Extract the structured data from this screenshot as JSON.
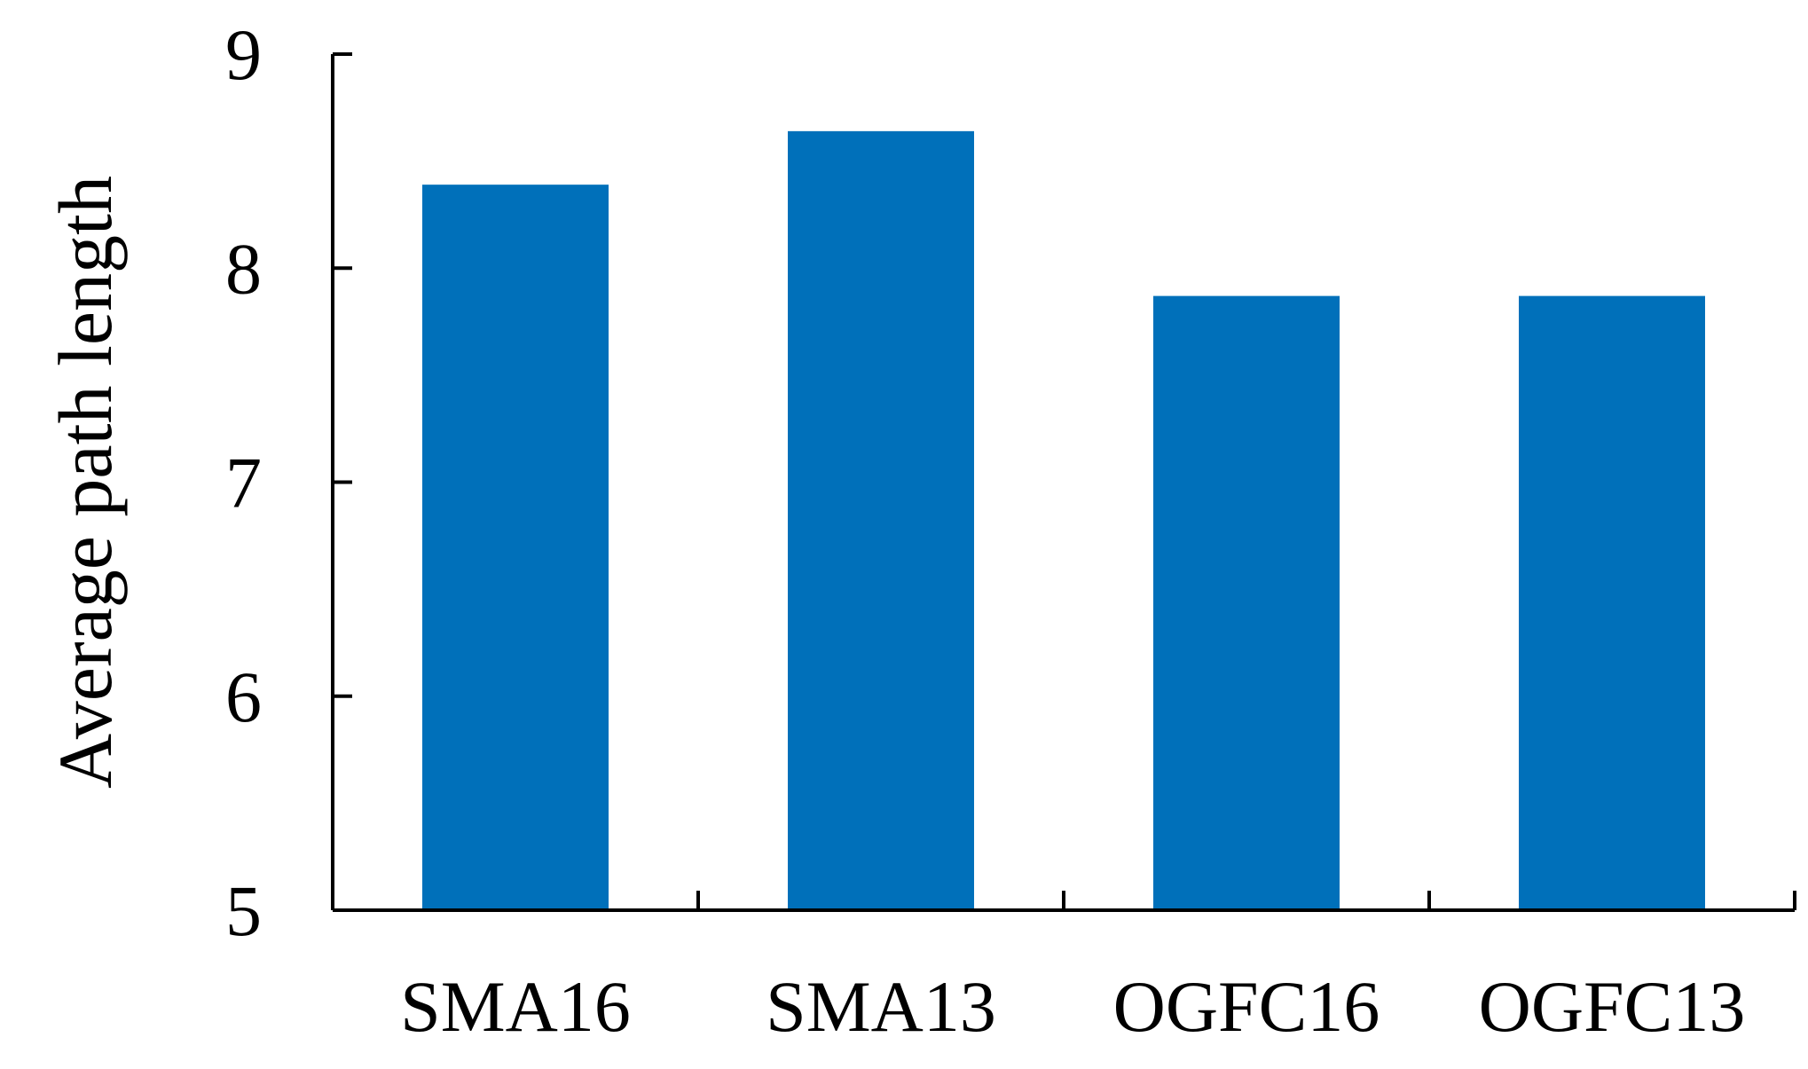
{
  "chart_data": {
    "type": "bar",
    "title": "",
    "xlabel": "",
    "ylabel": "Average path length",
    "categories": [
      "SMA16",
      "SMA13",
      "OGFC16",
      "OGFC13"
    ],
    "values": [
      8.39,
      8.64,
      7.87,
      7.87
    ],
    "ylim": [
      5,
      9
    ],
    "yticks": [
      5,
      6,
      7,
      8,
      9
    ],
    "grid": false,
    "legend": "none",
    "bar_color": "#0070BA"
  }
}
